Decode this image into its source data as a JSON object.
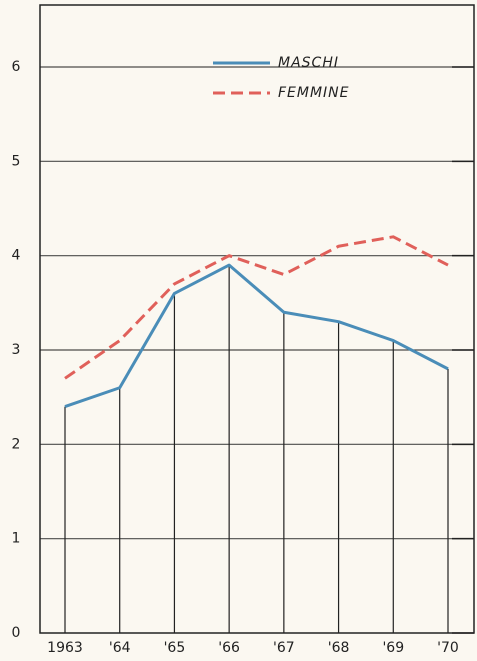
{
  "chart_data": {
    "type": "line",
    "categories": [
      "1963",
      "'64",
      "'65",
      "'66",
      "'67",
      "'68",
      "'69",
      "'70"
    ],
    "series": [
      {
        "name": "MASCHI",
        "color": "#4a8db8",
        "dash": false,
        "values": [
          2.4,
          2.6,
          3.6,
          3.9,
          3.4,
          3.3,
          3.1,
          2.8
        ]
      },
      {
        "name": "FEMMINE",
        "color": "#e0605a",
        "dash": true,
        "values": [
          2.7,
          3.1,
          3.7,
          4.0,
          3.8,
          4.1,
          4.2,
          3.9
        ]
      }
    ],
    "ylim": [
      0,
      6
    ],
    "yticks": [
      0,
      1,
      2,
      3,
      4,
      5,
      6
    ],
    "grid": true
  }
}
